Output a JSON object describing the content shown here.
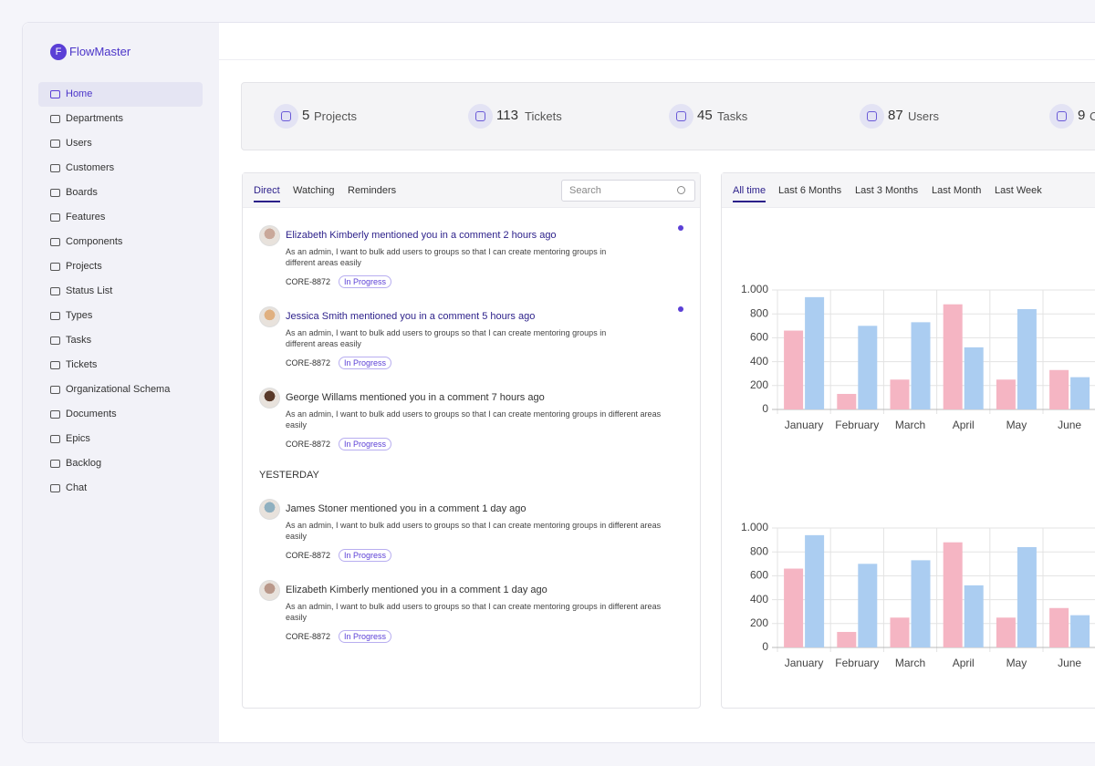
{
  "sidebar": {
    "logo_initial": "F",
    "logo_name": "FlowMaster",
    "nav": [
      "Home",
      "Departments",
      "Users",
      "Customers",
      "Boards",
      "Features",
      "Components",
      "Projects",
      "Status List",
      "Types",
      "Tasks",
      "Tickets",
      "Organizational Schema",
      "Documents",
      "Epics",
      "Backlog",
      "Chat"
    ],
    "selected_nav": 0
  },
  "stats": [
    {
      "value": 5,
      "label": "Projects"
    },
    {
      "value": 113,
      "label": "Tickets"
    },
    {
      "value": 45,
      "label": "Tasks"
    },
    {
      "value": 87,
      "label": "Users"
    },
    {
      "value": 9,
      "label": "C"
    }
  ],
  "notifications": {
    "tabs": [
      "Direct",
      "Watching",
      "Reminders"
    ],
    "selected_tab": 0,
    "search_placeholder": "Search",
    "items": [
      {
        "title": "Elizabeth Kimberly mentioned you in a comment 2 hours ago",
        "body": "As an admin, I want to bulk add users to groups so that I can create mentoring groups in different areas easily",
        "ticket": "CORE-8872",
        "status": "In Progress",
        "unread": true
      },
      {
        "title": "Jessica Smith mentioned you in a comment 5 hours ago",
        "body": "As an admin, I want to bulk add users to groups so that I can create mentoring groups in different areas easily",
        "ticket": "CORE-8872",
        "status": "In Progress",
        "unread": true
      },
      {
        "title": "George Willams mentioned you in a comment 7 hours ago",
        "body": "As an admin, I want to bulk add users to groups so that I can create mentoring groups in different areas easily",
        "ticket": "CORE-8872",
        "status": "In Progress",
        "unread": false
      }
    ],
    "yesterday": {
      "heading": "YESTERDAY",
      "items": [
        {
          "title": "James Stoner mentioned you in a comment 1 day ago",
          "body": "As an admin, I want to bulk add users to groups so that I can create mentoring groups in different areas easily",
          "ticket": "CORE-8872",
          "status": "In Progress",
          "unread": false
        },
        {
          "title": "Elizabeth Kimberly mentioned you in a comment 1 day ago",
          "body": "As an admin, I want to bulk add users to groups so that I can create mentoring groups in different areas easily",
          "ticket": "CORE-8872",
          "status": "In Progress",
          "unread": false
        }
      ]
    }
  },
  "chart_tabs": {
    "tabs": [
      "All time",
      "Last 6 Months",
      "Last 3 Months",
      "Last Month",
      "Last Week"
    ],
    "selected_tab": 0
  },
  "chart_data": [
    {
      "type": "bar",
      "categories": [
        "January",
        "February",
        "March",
        "April",
        "May",
        "June"
      ],
      "series": [
        {
          "color": "#f5b5c3",
          "values": [
            660,
            130,
            250,
            880,
            250,
            330
          ]
        },
        {
          "color": "#abcdf1",
          "values": [
            940,
            700,
            730,
            520,
            840,
            270
          ]
        }
      ],
      "ylim": [
        0,
        1000
      ],
      "yticks": [
        0,
        200,
        400,
        600,
        800,
        {
          "value": 1000,
          "label": "1.000"
        }
      ],
      "grid": true
    },
    {
      "type": "bar",
      "categories": [
        "January",
        "February",
        "March",
        "April",
        "May",
        "June"
      ],
      "series": [
        {
          "color": "#f5b5c3",
          "values": [
            660,
            130,
            250,
            880,
            250,
            330
          ]
        },
        {
          "color": "#abcdf1",
          "values": [
            940,
            700,
            730,
            520,
            840,
            270
          ]
        }
      ],
      "ylim": [
        0,
        1000
      ],
      "yticks": [
        0,
        200,
        400,
        600,
        800,
        {
          "value": 1000,
          "label": "1.000"
        }
      ],
      "grid": true
    }
  ]
}
